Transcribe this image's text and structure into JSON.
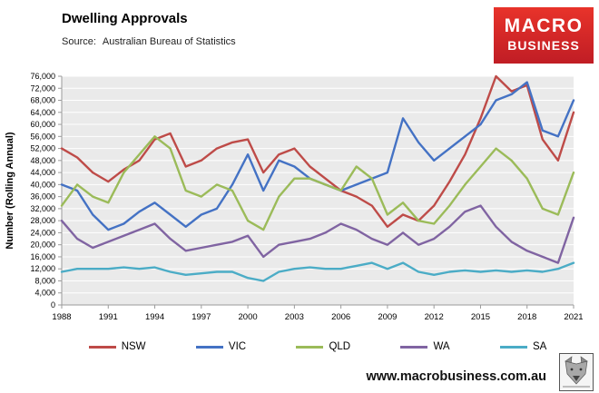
{
  "header": {
    "title": "Dwelling Approvals",
    "source_label": "Source:",
    "source_value": "Australian Bureau of Statistics"
  },
  "logo": {
    "line1": "MACRO",
    "line2": "BUSINESS",
    "bg_color": "#cf2027"
  },
  "footer": {
    "url": "www.macrobusiness.com.au"
  },
  "chart_data": {
    "type": "line",
    "title": "Dwelling Approvals",
    "xlabel": "",
    "ylabel": "Number (Rolling Annual)",
    "ylim": [
      0,
      76000
    ],
    "ytick_step": 4000,
    "grid": true,
    "legend_position": "bottom",
    "plot_bg": "#eaeaea",
    "grid_color": "#ffffff",
    "axis_color": "#9a9a9a",
    "x": [
      1988,
      1989,
      1990,
      1991,
      1992,
      1993,
      1994,
      1995,
      1996,
      1997,
      1998,
      1999,
      2000,
      2001,
      2002,
      2003,
      2004,
      2005,
      2006,
      2007,
      2008,
      2009,
      2010,
      2011,
      2012,
      2013,
      2014,
      2015,
      2016,
      2017,
      2018,
      2019,
      2020,
      2021
    ],
    "xticks": [
      1988,
      1991,
      1994,
      1997,
      2000,
      2003,
      2006,
      2009,
      2012,
      2015,
      2018,
      2021
    ],
    "series": [
      {
        "name": "NSW",
        "color": "#be4b48",
        "values": [
          52000,
          49000,
          44000,
          41000,
          45000,
          48000,
          55000,
          57000,
          46000,
          48000,
          52000,
          54000,
          55000,
          44000,
          50000,
          52000,
          46000,
          42000,
          38000,
          36000,
          33000,
          26000,
          30000,
          28000,
          33000,
          41000,
          50000,
          62000,
          76000,
          71000,
          73000,
          55000,
          48000,
          64000
        ]
      },
      {
        "name": "VIC",
        "color": "#4472c4",
        "values": [
          40000,
          38000,
          30000,
          25000,
          27000,
          31000,
          34000,
          30000,
          26000,
          30000,
          32000,
          40000,
          50000,
          38000,
          48000,
          46000,
          42000,
          40000,
          38000,
          40000,
          42000,
          44000,
          62000,
          54000,
          48000,
          52000,
          56000,
          60000,
          68000,
          70000,
          74000,
          58000,
          56000,
          68000
        ]
      },
      {
        "name": "QLD",
        "color": "#9bbb59",
        "values": [
          33000,
          40000,
          36000,
          34000,
          44000,
          50000,
          56000,
          52000,
          38000,
          36000,
          40000,
          38000,
          28000,
          25000,
          36000,
          42000,
          42000,
          40000,
          38000,
          46000,
          42000,
          30000,
          34000,
          28000,
          27000,
          33000,
          40000,
          46000,
          52000,
          48000,
          42000,
          32000,
          30000,
          44000
        ]
      },
      {
        "name": "WA",
        "color": "#8064a2",
        "values": [
          28000,
          22000,
          19000,
          21000,
          23000,
          25000,
          27000,
          22000,
          18000,
          19000,
          20000,
          21000,
          23000,
          16000,
          20000,
          21000,
          22000,
          24000,
          27000,
          25000,
          22000,
          20000,
          24000,
          20000,
          22000,
          26000,
          31000,
          33000,
          26000,
          21000,
          18000,
          16000,
          14000,
          29000
        ]
      },
      {
        "name": "SA",
        "color": "#4bacc6",
        "values": [
          11000,
          12000,
          12000,
          12000,
          12500,
          12000,
          12500,
          11000,
          10000,
          10500,
          11000,
          11000,
          9000,
          8000,
          11000,
          12000,
          12500,
          12000,
          12000,
          13000,
          14000,
          12000,
          14000,
          11000,
          10000,
          11000,
          11500,
          11000,
          11500,
          11000,
          11500,
          11000,
          12000,
          14000
        ]
      }
    ]
  }
}
